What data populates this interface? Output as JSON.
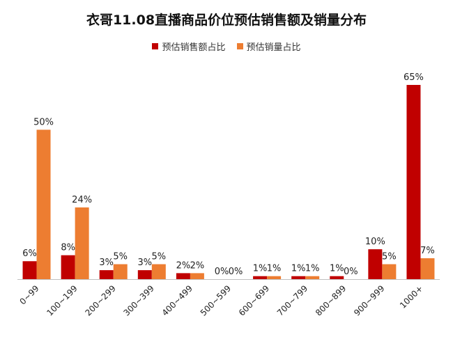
{
  "chart_data": {
    "type": "bar",
    "title": "衣哥11.08直播商品价位预估销售额及销量分布",
    "categories": [
      "0~99",
      "100~199",
      "200~299",
      "300~399",
      "400~499",
      "500~599",
      "600~699",
      "700~799",
      "800~899",
      "900~999",
      "1000+"
    ],
    "series": [
      {
        "name": "预估销售额占比",
        "color": "#c00000",
        "values": [
          6,
          8,
          3,
          3,
          2,
          0,
          1,
          1,
          1,
          10,
          65
        ],
        "labels": [
          "6%",
          "8%",
          "3%",
          "3%",
          "2%",
          "0%",
          "1%",
          "1%",
          "1%",
          "10%",
          "65%"
        ]
      },
      {
        "name": "预估销量占比",
        "color": "#ed7d31",
        "values": [
          50,
          24,
          5,
          5,
          2,
          0,
          1,
          1,
          0,
          5,
          7
        ],
        "labels": [
          "50%",
          "24%",
          "5%",
          "5%",
          "2%",
          "0%",
          "1%",
          "1%",
          "0%",
          "5%",
          "7%"
        ]
      }
    ],
    "ylim": [
      0,
      65
    ],
    "legend": "top-center",
    "grid": false
  }
}
